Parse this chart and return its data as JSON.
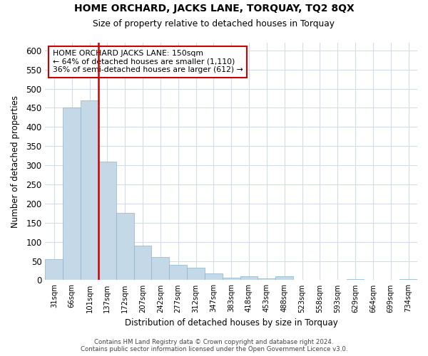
{
  "title": "HOME ORCHARD, JACKS LANE, TORQUAY, TQ2 8QX",
  "subtitle": "Size of property relative to detached houses in Torquay",
  "xlabel": "Distribution of detached houses by size in Torquay",
  "ylabel": "Number of detached properties",
  "bar_values": [
    55,
    450,
    470,
    310,
    175,
    90,
    60,
    40,
    33,
    17,
    7,
    10,
    4,
    10,
    1,
    0,
    0,
    3,
    0,
    0,
    2
  ],
  "bin_labels": [
    "31sqm",
    "66sqm",
    "101sqm",
    "137sqm",
    "172sqm",
    "207sqm",
    "242sqm",
    "277sqm",
    "312sqm",
    "347sqm",
    "383sqm",
    "418sqm",
    "453sqm",
    "488sqm",
    "523sqm",
    "558sqm",
    "593sqm",
    "629sqm",
    "664sqm",
    "699sqm",
    "734sqm"
  ],
  "bar_color": "#c5d8e8",
  "bar_edge_color": "#8ab4cc",
  "vline_color": "#cc0000",
  "vline_x_index": 3,
  "annotation_text_line1": "HOME ORCHARD JACKS LANE: 150sqm",
  "annotation_text_line2": "← 64% of detached houses are smaller (1,110)",
  "annotation_text_line3": "36% of semi-detached houses are larger (612) →",
  "annotation_border_color": "#cc0000",
  "ylim": [
    0,
    620
  ],
  "yticks": [
    0,
    50,
    100,
    150,
    200,
    250,
    300,
    350,
    400,
    450,
    500,
    550,
    600
  ],
  "footer_line1": "Contains HM Land Registry data © Crown copyright and database right 2024.",
  "footer_line2": "Contains public sector information licensed under the Open Government Licence v3.0.",
  "background_color": "#ffffff",
  "grid_color": "#d0dce8"
}
